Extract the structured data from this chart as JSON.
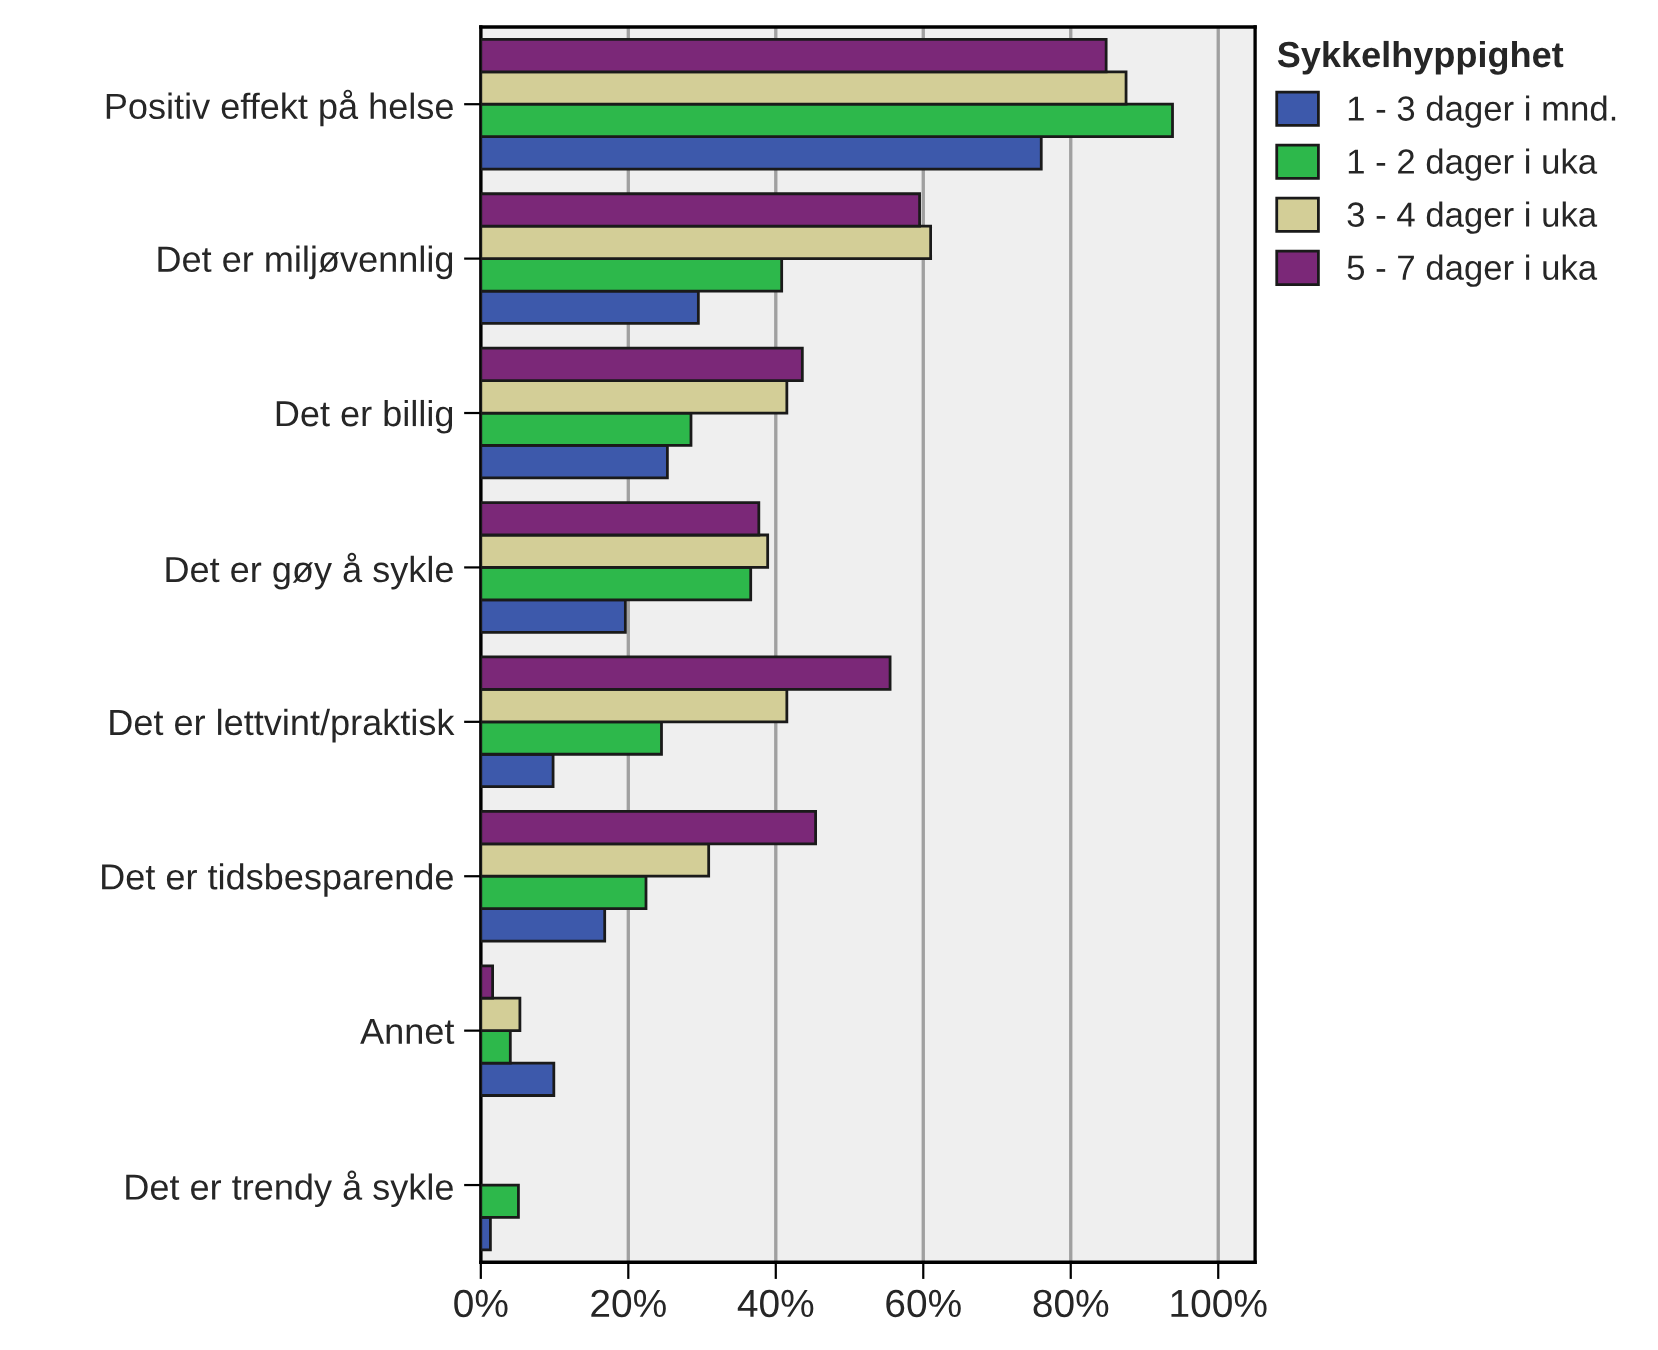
{
  "chart_data": {
    "type": "bar",
    "orientation": "horizontal",
    "categories": [
      "Positiv effekt på helse",
      "Det er miljøvennlig",
      "Det er billig",
      "Det er gøy å sykle",
      "Det er lettvint/praktisk",
      "Det er tidsbesparende",
      "Annet",
      "Det er trendy å sykle"
    ],
    "legend_title": "Sykkelhyppighet",
    "series": [
      {
        "name": "1 - 3 dager i mnd.",
        "color": "#3d59ab",
        "values": [
          76.0,
          29.5,
          25.3,
          19.6,
          9.8,
          16.8,
          9.9,
          1.3
        ]
      },
      {
        "name": "1 - 2 dager i uka",
        "color": "#2db84b",
        "values": [
          93.8,
          40.8,
          28.5,
          36.6,
          24.5,
          22.4,
          4.0,
          5.1
        ]
      },
      {
        "name": "3 - 4 dager i uka",
        "color": "#d3ce97",
        "values": [
          87.5,
          61.0,
          41.5,
          38.9,
          41.5,
          30.9,
          5.3,
          null
        ]
      },
      {
        "name": "5 - 7 dager i uka",
        "color": "#7b2878",
        "values": [
          84.8,
          59.5,
          43.6,
          37.7,
          55.5,
          45.4,
          1.6,
          null
        ]
      }
    ],
    "xlim": [
      0,
      105
    ],
    "xticks": [
      {
        "value": 0,
        "label": "0%"
      },
      {
        "value": 20,
        "label": "20%"
      },
      {
        "value": 40,
        "label": "40%"
      },
      {
        "value": 60,
        "label": "60%"
      },
      {
        "value": 80,
        "label": "80%"
      },
      {
        "value": 100,
        "label": "100%"
      }
    ],
    "grid": "x",
    "legend": "top right"
  }
}
